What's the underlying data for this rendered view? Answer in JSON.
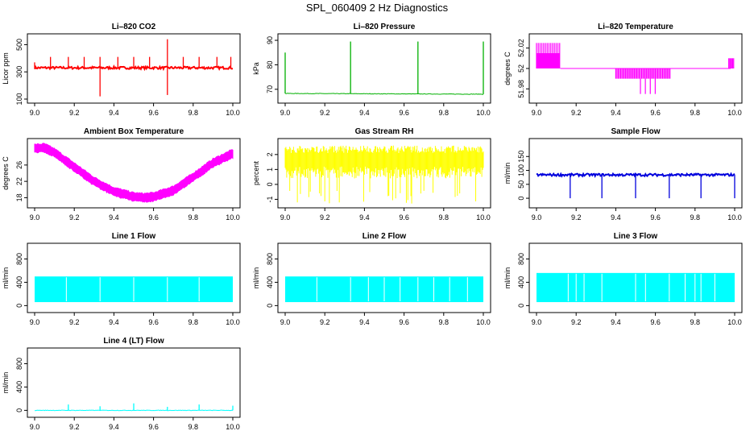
{
  "title": "SPL_060409  2 Hz Diagnostics",
  "chart_data": [
    {
      "type": "line",
      "title": "Li–820 CO2",
      "ylabel": "Licor ppm",
      "color": "#ff0000",
      "xlim": [
        9.0,
        10.0
      ],
      "ylim": [
        100,
        550
      ],
      "yticks": [
        100,
        300,
        500
      ],
      "xticks": [
        "9.0",
        "9.2",
        "9.4",
        "9.6",
        "9.8",
        "10.0"
      ],
      "baseline": [
        [
          9.0,
          330
        ],
        [
          10.0,
          330
        ]
      ],
      "spikes": [
        [
          9.0,
          370
        ],
        [
          9.08,
          410
        ],
        [
          9.17,
          410
        ],
        [
          9.25,
          410
        ],
        [
          9.33,
          410
        ],
        [
          9.42,
          410
        ],
        [
          9.5,
          410
        ],
        [
          9.58,
          410
        ],
        [
          9.67,
          540
        ],
        [
          9.75,
          410
        ],
        [
          9.83,
          410
        ],
        [
          9.92,
          410
        ],
        [
          9.99,
          410
        ],
        [
          9.33,
          120
        ],
        [
          9.67,
          130
        ]
      ],
      "pattern": "noise"
    },
    {
      "type": "line",
      "title": "Li–820 Pressure",
      "ylabel": "kPa",
      "color": "#00b000",
      "xlim": [
        9.0,
        10.0
      ],
      "ylim": [
        66,
        91
      ],
      "yticks": [
        70,
        80,
        90
      ],
      "xticks": [
        "9.0",
        "9.2",
        "9.4",
        "9.6",
        "9.8",
        "10.0"
      ],
      "baseline": [
        [
          9.0,
          68.3
        ],
        [
          10.0,
          68.0
        ]
      ],
      "spikes": [
        [
          9.0,
          85
        ],
        [
          9.33,
          89.5
        ],
        [
          9.67,
          89.5
        ],
        [
          10.0,
          89.5
        ]
      ],
      "pattern": "flat"
    },
    {
      "type": "line",
      "title": "Li–820 Temperature",
      "ylabel": "degrees C",
      "color": "#ff00ff",
      "xlim": [
        9.0,
        10.0
      ],
      "ylim": [
        51.97,
        52.03
      ],
      "yticks": [
        51.98,
        52.0,
        52.02
      ],
      "xticks": [
        "9.0",
        "9.2",
        "9.4",
        "9.6",
        "9.8",
        "10.0"
      ],
      "baseline": [
        [
          9.0,
          52.0
        ],
        [
          10.0,
          52.0
        ]
      ],
      "pattern": "temp"
    },
    {
      "type": "line",
      "title": "Ambient Box Temperature",
      "ylabel": "degrees C",
      "color": "#ff00ff",
      "xlim": [
        9.0,
        10.0
      ],
      "ylim": [
        16.5,
        31.5
      ],
      "yticks": [
        18,
        22,
        26
      ],
      "xticks": [
        "9.0",
        "9.2",
        "9.4",
        "9.6",
        "9.8",
        "10.0"
      ],
      "curve": [
        [
          9.0,
          30.0
        ],
        [
          9.05,
          30.2
        ],
        [
          9.1,
          29.0
        ],
        [
          9.2,
          25.5
        ],
        [
          9.3,
          22.0
        ],
        [
          9.4,
          19.5
        ],
        [
          9.5,
          18.2
        ],
        [
          9.55,
          18.0
        ],
        [
          9.6,
          18.2
        ],
        [
          9.7,
          19.8
        ],
        [
          9.8,
          23.0
        ],
        [
          9.9,
          26.5
        ],
        [
          10.0,
          28.8
        ]
      ],
      "pattern": "band"
    },
    {
      "type": "line",
      "title": "Gas Stream RH",
      "ylabel": "percent",
      "color": "#ffff00",
      "xlim": [
        9.0,
        10.0
      ],
      "ylim": [
        -1.3,
        2.8
      ],
      "yticks": [
        -1,
        0,
        1,
        2
      ],
      "xticks": [
        "9.0",
        "9.2",
        "9.4",
        "9.6",
        "9.8",
        "10.0"
      ],
      "baseline": [
        [
          9.0,
          2.0
        ],
        [
          10.0,
          2.0
        ]
      ],
      "pattern": "rh"
    },
    {
      "type": "line",
      "title": "Sample Flow",
      "ylabel": "ml/min",
      "color": "#0000dd",
      "xlim": [
        9.0,
        10.0
      ],
      "ylim": [
        -20,
        200
      ],
      "yticks": [
        0,
        50,
        100,
        150
      ],
      "xticks": [
        "9.0",
        "9.2",
        "9.4",
        "9.6",
        "9.8",
        "10.0"
      ],
      "baseline": [
        [
          9.0,
          84
        ],
        [
          10.0,
          84
        ]
      ],
      "spikes": [
        [
          9.17,
          0
        ],
        [
          9.33,
          0
        ],
        [
          9.5,
          0
        ],
        [
          9.67,
          0
        ],
        [
          9.83,
          0
        ],
        [
          10.0,
          0
        ]
      ],
      "pattern": "noise"
    },
    {
      "type": "area",
      "title": "Line 1 Flow",
      "ylabel": "ml/min",
      "color": "#00ffff",
      "xlim": [
        9.0,
        10.0
      ],
      "ylim": [
        -50,
        1000
      ],
      "yticks": [
        0,
        400,
        800
      ],
      "xticks": [
        "9.0",
        "9.2",
        "9.4",
        "9.6",
        "9.8",
        "10.0"
      ],
      "band": [
        60,
        500
      ],
      "gaps": [
        9.16,
        9.33,
        9.5,
        9.67,
        9.83
      ],
      "pattern": "block"
    },
    {
      "type": "area",
      "title": "Line 2 Flow",
      "ylabel": "ml/min",
      "color": "#00ffff",
      "xlim": [
        9.0,
        10.0
      ],
      "ylim": [
        -50,
        1000
      ],
      "yticks": [
        0,
        400,
        800
      ],
      "xticks": [
        "9.0",
        "9.2",
        "9.4",
        "9.6",
        "9.8",
        "10.0"
      ],
      "band": [
        60,
        500
      ],
      "gaps": [
        9.16,
        9.33,
        9.42,
        9.5,
        9.58,
        9.67,
        9.75,
        9.83,
        9.92
      ],
      "pattern": "block"
    },
    {
      "type": "area",
      "title": "Line 3 Flow",
      "ylabel": "ml/min",
      "color": "#00ffff",
      "xlim": [
        9.0,
        10.0
      ],
      "ylim": [
        -50,
        1000
      ],
      "yticks": [
        0,
        400,
        800
      ],
      "xticks": [
        "9.0",
        "9.2",
        "9.4",
        "9.6",
        "9.8",
        "10.0"
      ],
      "band": [
        60,
        560
      ],
      "gaps": [
        9.16,
        9.2,
        9.24,
        9.33,
        9.5,
        9.55,
        9.67,
        9.75,
        9.8,
        9.83,
        9.9
      ],
      "pattern": "block"
    },
    {
      "type": "line",
      "title": "Line 4 (LT) Flow",
      "ylabel": "ml/min",
      "color": "#00ffff",
      "xlim": [
        9.0,
        10.0
      ],
      "ylim": [
        -50,
        1000
      ],
      "yticks": [
        0,
        400,
        800
      ],
      "xticks": [
        "9.0",
        "9.2",
        "9.4",
        "9.6",
        "9.8",
        "10.0"
      ],
      "baseline": [
        [
          9.0,
          0
        ],
        [
          10.0,
          0
        ]
      ],
      "spikes": [
        [
          9.17,
          100
        ],
        [
          9.33,
          70
        ],
        [
          9.5,
          120
        ],
        [
          9.67,
          60
        ],
        [
          9.83,
          100
        ],
        [
          10.0,
          80
        ]
      ],
      "pattern": "flat"
    }
  ]
}
